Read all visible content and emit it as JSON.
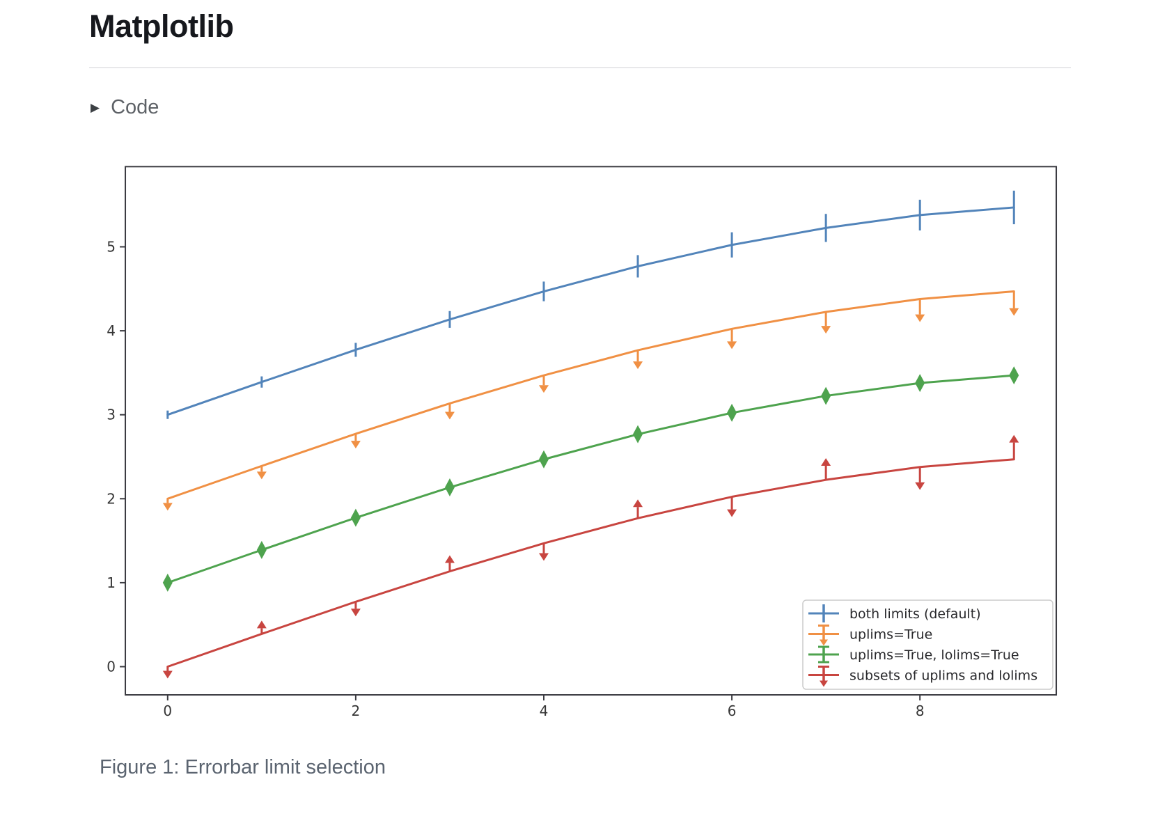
{
  "page": {
    "title": "Matplotlib",
    "code_toggle": {
      "label": "Code",
      "icon": "triangle-right-icon"
    },
    "caption": "Figure 1: Errorbar limit selection"
  },
  "chart_data": {
    "type": "line",
    "title": "",
    "xlabel": "",
    "ylabel": "",
    "xlim": [
      -0.45,
      9.45
    ],
    "ylim": [
      -0.336,
      5.955
    ],
    "x_ticks": [
      0,
      2,
      4,
      6,
      8
    ],
    "y_ticks": [
      0,
      1,
      2,
      3,
      4,
      5
    ],
    "grid": false,
    "legend_position": "lower right",
    "x": [
      0,
      1,
      2,
      3,
      4,
      5,
      6,
      7,
      8,
      9
    ],
    "yerr": [
      0.05,
      0.067,
      0.083,
      0.1,
      0.117,
      0.133,
      0.15,
      0.167,
      0.183,
      0.2
    ],
    "series": [
      {
        "name": "both limits (default)",
        "color": "#5284ba",
        "limits": "none",
        "values": [
          3.0,
          3.39,
          3.773,
          4.135,
          4.469,
          4.768,
          5.023,
          5.225,
          5.378,
          5.469
        ]
      },
      {
        "name": "uplims=True",
        "color": "#f09044",
        "limits": "uplims",
        "values": [
          2.0,
          2.39,
          2.773,
          3.135,
          3.469,
          3.768,
          4.023,
          4.225,
          4.378,
          4.469
        ]
      },
      {
        "name": "uplims=True, lolims=True",
        "color": "#4ea34e",
        "limits": "both",
        "values": [
          1.0,
          1.39,
          1.773,
          2.135,
          2.469,
          2.768,
          3.023,
          3.225,
          3.378,
          3.469
        ]
      },
      {
        "name": "subsets of uplims and lolims",
        "color": "#c84540",
        "limits": "alternating",
        "uplims": [
          true,
          false,
          true,
          false,
          true,
          false,
          true,
          false,
          true,
          false
        ],
        "lolims": [
          false,
          true,
          false,
          true,
          false,
          true,
          false,
          true,
          false,
          true
        ],
        "values": [
          0.0,
          0.39,
          0.773,
          1.135,
          1.469,
          1.768,
          2.023,
          2.225,
          2.378,
          2.469
        ]
      }
    ],
    "style": {
      "spine_color": "#3b3b41",
      "tick_label_color": "#363636",
      "legend_border_color": "#cbcbcb",
      "legend_text_color": "#28282b"
    }
  }
}
